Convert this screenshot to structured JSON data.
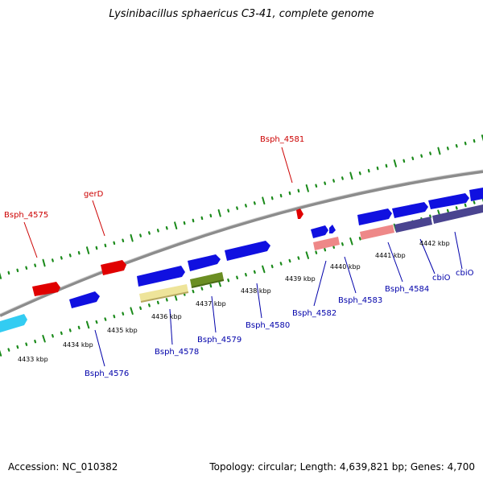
{
  "title": "Lysinibacillus sphaericus C3-41, complete genome",
  "accession_label": "Accession: NC_010382",
  "topology_label": "Topology: circular; Length: 4,639,821 bp; Genes: 4,700",
  "colors": {
    "backbone": "#8c8c8c",
    "tick": "#1a8a1a",
    "red_label": "#cc0000",
    "blue_label": "#0000aa",
    "gene_blue": "#1010e0",
    "gene_red": "#e00000",
    "gene_cyan": "#33ccf2",
    "gene_pink": "#ee8888",
    "gene_yellow": "#eee49a",
    "gene_olive": "#6b8e23",
    "gene_purple": "#4a4490"
  },
  "kbp_labels": [
    "4433 kbp",
    "4434 kbp",
    "4435 kbp",
    "4436 kbp",
    "4437 kbp",
    "4438 kbp",
    "4439 kbp",
    "4440 kbp",
    "4441 kbp",
    "4442 kbp"
  ],
  "top_gene_labels": [
    "Bsph_4575",
    "gerD",
    "Bsph_4581"
  ],
  "bottom_gene_labels": [
    "Bsph_4576",
    "Bsph_4578",
    "Bsph_4579",
    "Bsph_4580",
    "Bsph_4582",
    "Bsph_4583",
    "Bsph_4584",
    "cbiO",
    "cbiO"
  ]
}
